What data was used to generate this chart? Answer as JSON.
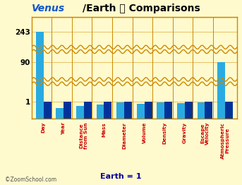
{
  "categories": [
    "Day",
    "Year",
    "Distance\nfrom Sun",
    "Mass",
    "Diameter",
    "Volume",
    "Density",
    "Gravity",
    "Escape\nVelocity",
    "Atmospheric\nPressure"
  ],
  "venus_values": [
    243,
    0.615,
    0.723,
    0.815,
    0.949,
    0.857,
    0.95,
    0.905,
    0.926,
    90
  ],
  "earth_values": [
    1,
    1,
    1,
    1,
    1,
    1,
    1,
    1,
    1,
    1
  ],
  "venus_color": "#29ABE2",
  "earth_color": "#003399",
  "bg_color": "#FFFACD",
  "plot_bg": "#FFFACD",
  "grid_color": "#CC8800",
  "axis_label_color": "#CC0000",
  "title_venus_color": "#1155CC",
  "title_earth_color": "#000000",
  "xlabel": "Earth = 1",
  "xlabel_color": "#000099",
  "watermark": "©ZoomSchool.com",
  "ytick_labels": [
    "1",
    "90",
    "243"
  ]
}
